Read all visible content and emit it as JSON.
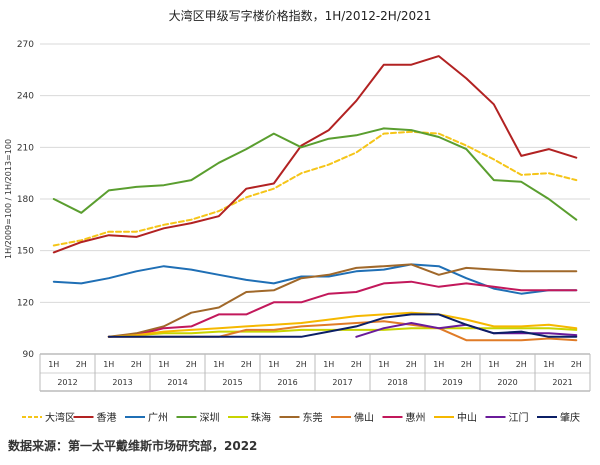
{
  "chart_data": {
    "type": "line",
    "title": "大湾区甲级写字楼价格指数，1H/2012-2H/2021",
    "ylabel": "1H/2009=100 / 1H/2013=100",
    "ylim": [
      90,
      270
    ],
    "yticks": [
      90,
      120,
      150,
      180,
      210,
      240,
      270
    ],
    "categories": [
      "1H",
      "2H",
      "1H",
      "2H",
      "1H",
      "2H",
      "1H",
      "2H",
      "1H",
      "2H",
      "1H",
      "2H",
      "1H",
      "2H",
      "1H",
      "2H",
      "1H",
      "2H",
      "1H",
      "2H"
    ],
    "years": [
      "2012",
      "2013",
      "2014",
      "2015",
      "2016",
      "2017",
      "2018",
      "2019",
      "2020",
      "2021"
    ],
    "grid": "horizontal",
    "legend_position": "bottom",
    "source": "数据来源：第一太平戴维斯市场研究部，2022",
    "series": [
      {
        "name": "大湾区",
        "color": "#F5C518",
        "dash": true,
        "values": [
          153,
          156,
          161,
          161,
          165,
          168,
          173,
          181,
          186,
          195,
          200,
          207,
          218,
          219,
          218,
          211,
          203,
          194,
          195,
          191
        ]
      },
      {
        "name": "香港",
        "color": "#B22222",
        "values": [
          149,
          155,
          159,
          158,
          163,
          166,
          170,
          186,
          189,
          211,
          220,
          237,
          258,
          258,
          263,
          250,
          235,
          205,
          209,
          204
        ]
      },
      {
        "name": "广州",
        "color": "#1F6FB5",
        "values": [
          132,
          131,
          134,
          138,
          141,
          139,
          136,
          133,
          131,
          135,
          135,
          138,
          139,
          142,
          141,
          134,
          128,
          125,
          127,
          127
        ]
      },
      {
        "name": "深圳",
        "color": "#5A9E2F",
        "values": [
          180,
          172,
          185,
          187,
          188,
          191,
          201,
          209,
          218,
          210,
          215,
          217,
          221,
          220,
          216,
          209,
          191,
          190,
          180,
          168
        ]
      },
      {
        "name": "珠海",
        "color": "#C8D400",
        "values": [
          null,
          null,
          100,
          101,
          102,
          102,
          103,
          103,
          103,
          104,
          104,
          104,
          104,
          105,
          105,
          105,
          105,
          105,
          105,
          104
        ]
      },
      {
        "name": "东莞",
        "color": "#A0682A",
        "values": [
          null,
          null,
          100,
          102,
          106,
          114,
          117,
          126,
          127,
          134,
          136,
          140,
          141,
          142,
          136,
          140,
          139,
          138,
          138,
          138
        ]
      },
      {
        "name": "佛山",
        "color": "#E07B27",
        "values": [
          null,
          null,
          100,
          100,
          100,
          100,
          100,
          104,
          104,
          106,
          107,
          108,
          109,
          107,
          105,
          98,
          98,
          98,
          99,
          98
        ]
      },
      {
        "name": "惠州",
        "color": "#C2185B",
        "values": [
          null,
          null,
          100,
          101,
          105,
          106,
          113,
          113,
          120,
          120,
          125,
          126,
          131,
          132,
          129,
          131,
          129,
          127,
          127,
          127
        ]
      },
      {
        "name": "中山",
        "color": "#F5B800",
        "values": [
          null,
          null,
          100,
          101,
          103,
          104,
          105,
          106,
          107,
          108,
          110,
          112,
          113,
          114,
          113,
          110,
          106,
          106,
          107,
          105
        ]
      },
      {
        "name": "江门",
        "color": "#6A1B9A",
        "values": [
          null,
          null,
          null,
          null,
          null,
          null,
          null,
          null,
          null,
          null,
          null,
          100,
          105,
          108,
          105,
          107,
          102,
          102,
          102,
          101
        ]
      },
      {
        "name": "肇庆",
        "color": "#0B1F66",
        "values": [
          null,
          null,
          100,
          100,
          100,
          100,
          100,
          100,
          100,
          100,
          103,
          106,
          111,
          113,
          113,
          107,
          102,
          103,
          100,
          100
        ]
      }
    ]
  }
}
